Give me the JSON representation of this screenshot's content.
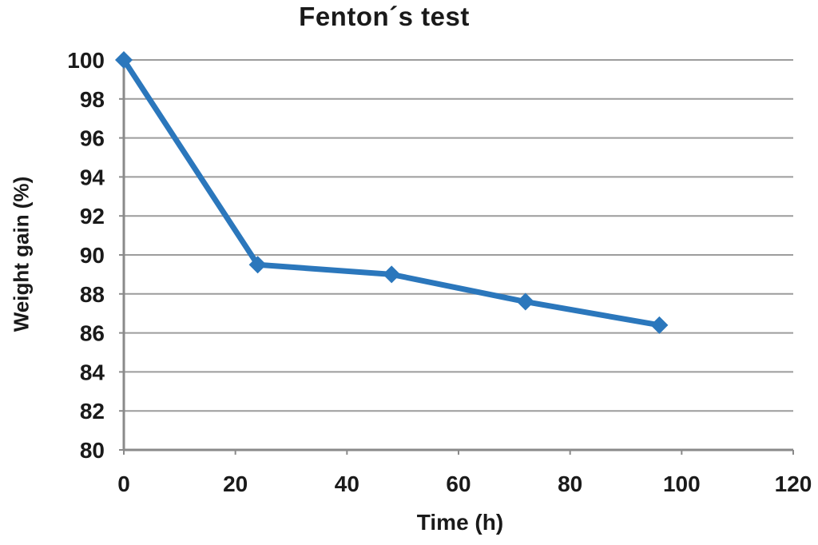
{
  "chart_data": {
    "type": "line",
    "title": "Fenton´s test",
    "xlabel": "Time (h)",
    "ylabel": "Weight gain (%)",
    "x": [
      0,
      24,
      48,
      72,
      96
    ],
    "y": [
      100,
      89.5,
      89,
      87.6,
      86.4
    ],
    "xlim": [
      0,
      120
    ],
    "ylim": [
      80,
      100
    ],
    "xticks": [
      0,
      20,
      40,
      60,
      80,
      100,
      120
    ],
    "yticks": [
      80,
      82,
      84,
      86,
      88,
      90,
      92,
      94,
      96,
      98,
      100
    ],
    "grid": "horizontal-only",
    "legend": "none",
    "marker": "diamond",
    "colors": {
      "line": "#2B77BC",
      "marker": "#2B77BC",
      "grid": "#9C9C9C",
      "axis": "#8A8A8A",
      "text": "#1A1A1A",
      "background": "#FFFFFF"
    }
  }
}
